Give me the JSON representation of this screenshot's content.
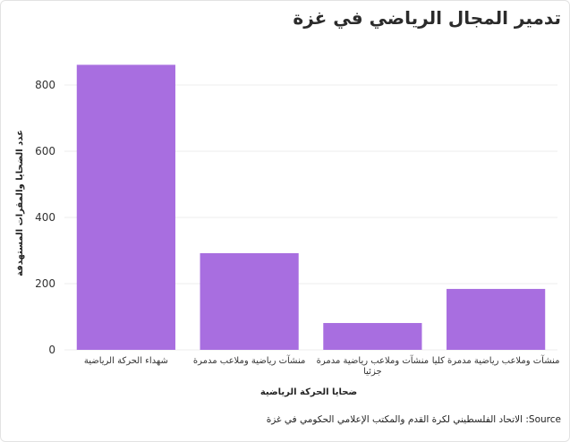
{
  "chart_data": {
    "type": "bar",
    "title": "تدمير المجال الرياضي في غزة",
    "xlabel": "ضحايا الحركة الرياضية",
    "ylabel": "عدد الضحايا والمقرات المستهدفة",
    "categories": [
      "شهداء الحركة الرياضية",
      "منشآت رياضية وملاعب مدمرة",
      "منشآت وملاعب رياضية مدمرة جزئيا",
      "منشآت وملاعب رياضية مدمرة كليا"
    ],
    "category_lines": [
      [
        "شهداء الحركة الرياضية"
      ],
      [
        "منشآت رياضية وملاعب مدمرة"
      ],
      [
        "منشآت وملاعب رياضية مدمرة",
        "جزئيا"
      ],
      [
        "منشآت وملاعب رياضية مدمرة كليا"
      ]
    ],
    "values": [
      861,
      292,
      81,
      184
    ],
    "ylim": [
      0,
      900
    ],
    "yticks": [
      0,
      200,
      400,
      600,
      800
    ],
    "grid": true,
    "bar_color": "#a86ee0"
  },
  "source": "Source: الاتحاد الفلسطيني لكرة القدم والمكتب الإعلامي الحكومي في غزة"
}
